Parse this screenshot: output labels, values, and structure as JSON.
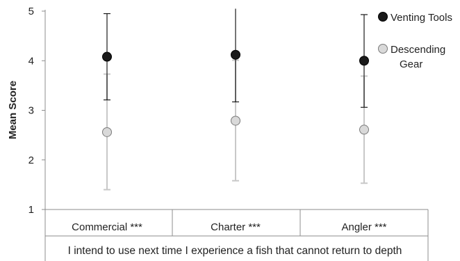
{
  "chart_data": {
    "type": "scatter",
    "categories": [
      "Commercial ***",
      "Charter ***",
      "Angler ***"
    ],
    "series": [
      {
        "name": "Venting Tools",
        "color": "#1a1a1a",
        "means": [
          4.08,
          4.12,
          4.0
        ],
        "lower": [
          3.21,
          3.17,
          3.06
        ],
        "upper": [
          4.95,
          5.05,
          4.93
        ]
      },
      {
        "name": "Descending Gear",
        "color": "#d9d9d9",
        "means": [
          2.56,
          2.79,
          2.61
        ],
        "lower": [
          1.4,
          1.58,
          1.53
        ],
        "upper": [
          3.73,
          4.01,
          3.69
        ]
      }
    ],
    "ylabel": "Mean Score",
    "xlabel": "I intend to use next time I experience a fish that cannot return to depth",
    "ylim": [
      1,
      5
    ],
    "yticks": [
      1,
      2,
      3,
      4,
      5
    ],
    "grid": false,
    "legend_position": "top-right"
  }
}
